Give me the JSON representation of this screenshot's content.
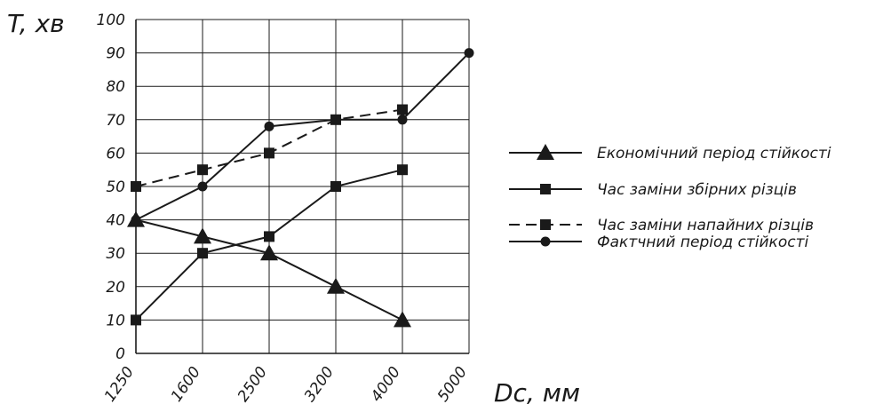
{
  "chart_data": {
    "type": "line",
    "xlabel": "Dc, мм",
    "ylabel": "T, хв",
    "categories": [
      "1250",
      "1600",
      "2500",
      "3200",
      "4000",
      "5000"
    ],
    "ylim": [
      0,
      100
    ],
    "yticks": [
      "0",
      "10",
      "20",
      "30",
      "40",
      "50",
      "60",
      "70",
      "80",
      "90",
      "100"
    ],
    "grid": true,
    "legend_position": "right",
    "series": [
      {
        "name": "Економічний період стійкості",
        "values": [
          40,
          35,
          30,
          20,
          10,
          null
        ],
        "marker": "triangle",
        "line": "solid"
      },
      {
        "name": "Час заміни збірних різців",
        "values": [
          10,
          30,
          35,
          50,
          55,
          null
        ],
        "marker": "square",
        "line": "solid"
      },
      {
        "name": "Час заміни напайних різців",
        "values": [
          50,
          55,
          60,
          70,
          73,
          null
        ],
        "marker": "square",
        "line": "dashed"
      },
      {
        "name": "Фактчний період стійкості",
        "values": [
          40,
          50,
          68,
          70,
          70,
          90
        ],
        "marker": "circle",
        "line": "solid"
      }
    ],
    "colors": {
      "line": "#1a1a1a",
      "grid": "#1a1a1a",
      "background": "#ffffff"
    }
  }
}
